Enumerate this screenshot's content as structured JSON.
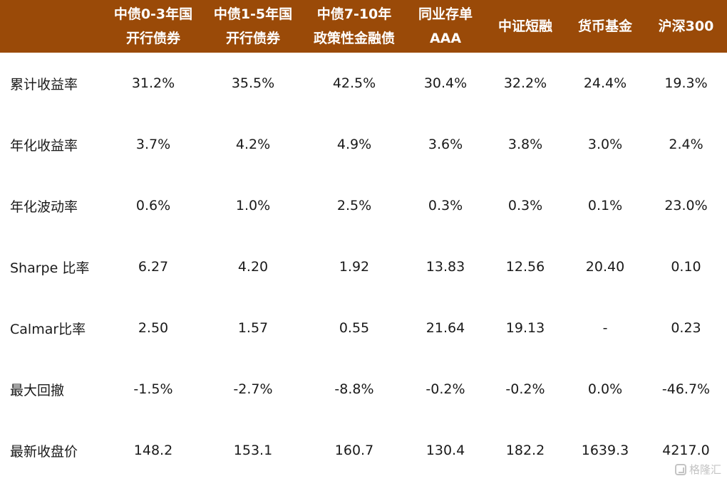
{
  "table": {
    "headers": [
      "",
      [
        "中债0-3年国",
        "开行债券"
      ],
      [
        "中债1-5年国",
        "开行债券"
      ],
      [
        "中债7-10年",
        "政策性金融债"
      ],
      [
        "同业存单",
        "AAA"
      ],
      [
        "中证短融"
      ],
      [
        "货币基金"
      ],
      [
        "沪深300"
      ]
    ],
    "rows": [
      [
        "累计收益率",
        "31.2%",
        "35.5%",
        "42.5%",
        "30.4%",
        "32.2%",
        "24.4%",
        "19.3%"
      ],
      [
        "年化收益率",
        "3.7%",
        "4.2%",
        "4.9%",
        "3.6%",
        "3.8%",
        "3.0%",
        "2.4%"
      ],
      [
        "年化波动率",
        "0.6%",
        "1.0%",
        "2.5%",
        "0.3%",
        "0.3%",
        "0.1%",
        "23.0%"
      ],
      [
        "Sharpe 比率",
        "6.27",
        "4.20",
        "1.92",
        "13.83",
        "12.56",
        "20.40",
        "0.10"
      ],
      [
        "Calmar比率",
        "2.50",
        "1.57",
        "0.55",
        "21.64",
        "19.13",
        "-",
        "0.23"
      ],
      [
        "最大回撤",
        "-1.5%",
        "-2.7%",
        "-8.8%",
        "-0.2%",
        "-0.2%",
        "0.0%",
        "-46.7%"
      ],
      [
        "最新收盘价",
        "148.2",
        "153.1",
        "160.7",
        "130.4",
        "182.2",
        "1639.3",
        "4217.0"
      ]
    ]
  },
  "watermark": {
    "text": "格隆汇",
    "icon": "gelonghui-logo-icon"
  },
  "colors": {
    "header_bg": "#9a4a08",
    "header_text": "#ffffff",
    "body_text": "#1a1a1a"
  }
}
